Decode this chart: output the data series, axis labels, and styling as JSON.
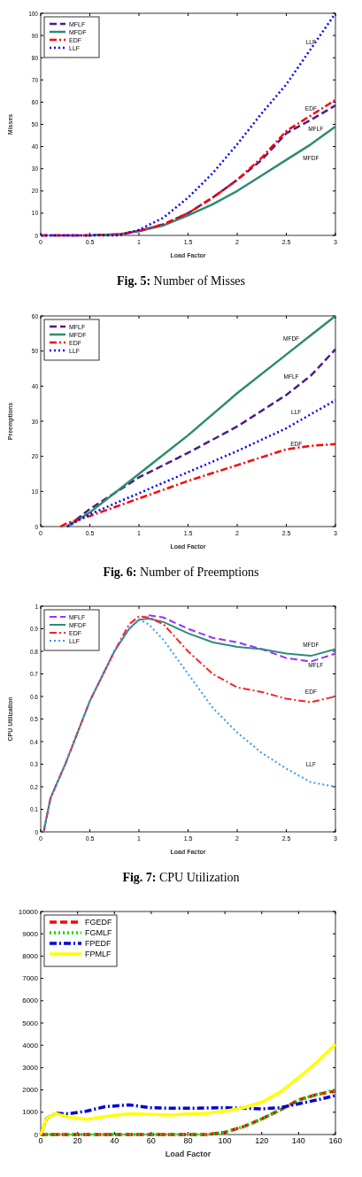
{
  "chart_data": [
    {
      "type": "line",
      "title": "Fig. 5: Number of Misses",
      "xlabel": "Load Factor",
      "ylabel": "Misses",
      "xlim": [
        0,
        3
      ],
      "ylim": [
        0,
        100
      ],
      "xticks": [
        0,
        0.5,
        1,
        1.5,
        2,
        2.5,
        3
      ],
      "yticks": [
        0,
        10,
        20,
        30,
        40,
        50,
        60,
        70,
        80,
        90,
        100
      ],
      "legend": "top left",
      "grid": false,
      "x": [
        0,
        0.5,
        0.8,
        1,
        1.25,
        1.5,
        1.75,
        2,
        2.25,
        2.5,
        2.75,
        3
      ],
      "series": [
        {
          "name": "MFLF",
          "color": "#4b1c8c",
          "line_style": "dashed",
          "values": [
            0,
            0,
            0.5,
            2,
            5,
            10,
            17,
            25,
            34,
            46,
            52,
            58.5
          ]
        },
        {
          "name": "MFDF",
          "color": "#2e8b6e",
          "line_style": "solid",
          "values": [
            null,
            0,
            0.5,
            2,
            4.5,
            9,
            14,
            20,
            27,
            34,
            41,
            49
          ]
        },
        {
          "name": "EDF",
          "color": "#ff0000",
          "line_style": "dashdot",
          "values": [
            0,
            0,
            0.5,
            2,
            5,
            10,
            17,
            25,
            35,
            47,
            54,
            61
          ]
        },
        {
          "name": "LLF",
          "color": "#0000ff",
          "line_style": "dotted",
          "values": [
            0,
            0,
            0,
            2.5,
            8,
            17,
            28,
            41,
            55,
            68,
            84,
            100
          ]
        }
      ],
      "annotations": [
        "LLF",
        "EDF",
        "MFLF",
        "MFDF"
      ]
    },
    {
      "type": "line",
      "title": "Fig. 6: Number of Preemptions",
      "xlabel": "Load Factor",
      "ylabel": "Preemptions",
      "xlim": [
        0,
        3
      ],
      "ylim": [
        0,
        60
      ],
      "xticks": [
        0,
        0.5,
        1,
        1.5,
        2,
        2.5,
        3
      ],
      "yticks": [
        0,
        10,
        20,
        30,
        40,
        50,
        60
      ],
      "legend": "top left",
      "grid": false,
      "x": [
        0.2,
        0.27,
        0.5,
        1,
        1.5,
        2,
        2.5,
        2.75,
        3
      ],
      "series": [
        {
          "name": "MFLF",
          "color": "#4b1c8c",
          "line_style": "dashed",
          "values": [
            null,
            0,
            5,
            14,
            21,
            28.5,
            37.5,
            43,
            50.5
          ]
        },
        {
          "name": "MFDF",
          "color": "#2e8b6e",
          "line_style": "solid",
          "values": [
            null,
            0,
            4,
            15,
            26,
            38,
            49,
            54.5,
            60
          ]
        },
        {
          "name": "EDF",
          "color": "#ff0000",
          "line_style": "dashdot",
          "values": [
            0,
            1,
            3,
            8,
            13,
            17.5,
            22,
            23,
            23.5
          ]
        },
        {
          "name": "LLF",
          "color": "#0000ff",
          "line_style": "dotted",
          "values": [
            null,
            0,
            3.5,
            9.5,
            15.5,
            21.5,
            28,
            32,
            36
          ]
        }
      ],
      "annotations": [
        "MFDF",
        "MFLF",
        "LLF",
        "EDF"
      ]
    },
    {
      "type": "line",
      "title": "Fig. 7: CPU Utilization",
      "xlabel": "Load Factor",
      "ylabel": "CPU Utilization",
      "xlim": [
        0,
        3
      ],
      "ylim": [
        0,
        1
      ],
      "xticks": [
        0,
        0.5,
        1,
        1.5,
        2,
        2.5,
        3
      ],
      "yticks": [
        0,
        0.1,
        0.2,
        0.3,
        0.4,
        0.5,
        0.6,
        0.7,
        0.8,
        0.9,
        1
      ],
      "legend": "top left",
      "grid": false,
      "x": [
        0.03,
        0.1,
        0.25,
        0.5,
        0.75,
        0.9,
        1,
        1.1,
        1.25,
        1.5,
        1.75,
        2,
        2.25,
        2.5,
        2.75,
        3
      ],
      "series": [
        {
          "name": "MFLF",
          "color": "#9b30ff",
          "line_style": "dashed",
          "values": [
            null,
            null,
            null,
            null,
            null,
            null,
            null,
            0.96,
            0.95,
            0.9,
            0.86,
            0.84,
            0.81,
            0.77,
            0.755,
            0.79
          ]
        },
        {
          "name": "MFDF",
          "color": "#2e8b7a",
          "line_style": "solid",
          "values": [
            0,
            0.15,
            0.3,
            0.58,
            0.8,
            0.9,
            0.94,
            0.945,
            0.93,
            0.88,
            0.84,
            0.82,
            0.81,
            0.79,
            0.78,
            0.81
          ]
        },
        {
          "name": "EDF",
          "color": "#ff2020",
          "line_style": "dashdot",
          "values": [
            0,
            0.15,
            0.3,
            0.58,
            0.8,
            0.92,
            0.955,
            0.95,
            0.92,
            0.8,
            0.7,
            0.64,
            0.62,
            0.59,
            0.575,
            0.6
          ]
        },
        {
          "name": "LLF",
          "color": "#3399ff",
          "line_style": "dotted",
          "values": [
            0,
            0.15,
            0.3,
            0.58,
            0.8,
            0.9,
            0.94,
            0.92,
            0.85,
            0.7,
            0.55,
            0.44,
            0.35,
            0.28,
            0.22,
            0.2
          ]
        }
      ],
      "annotations": [
        "MFDF",
        "MFLF",
        "EDF",
        "LLF"
      ]
    },
    {
      "type": "line",
      "xlabel": "Load Factor",
      "xlim": [
        0,
        160
      ],
      "ylim": [
        0,
        10000
      ],
      "xticks": [
        0,
        20,
        40,
        60,
        80,
        100,
        120,
        140,
        160
      ],
      "yticks": [
        0,
        1000,
        2000,
        3000,
        4000,
        5000,
        6000,
        7000,
        8000,
        9000,
        10000
      ],
      "legend": "top left",
      "grid": false,
      "x": [
        0,
        3,
        8,
        15,
        25,
        35,
        48,
        60,
        70,
        80,
        90,
        100,
        110,
        120,
        130,
        140,
        150,
        160
      ],
      "series": [
        {
          "name": "FGEDF",
          "color": "#ff0000",
          "line_style": "dashed",
          "values": [
            0,
            0,
            0,
            0,
            0,
            0,
            0,
            0,
            0,
            0,
            0,
            100,
            350,
            700,
            1100,
            1550,
            1800,
            1950
          ]
        },
        {
          "name": "FGMLF",
          "color": "#00dd00",
          "line_style": "dotted",
          "values": [
            0,
            0,
            0,
            0,
            0,
            0,
            0,
            0,
            0,
            0,
            0,
            100,
            350,
            700,
            1100,
            1550,
            1800,
            2000
          ]
        },
        {
          "name": "FPEDF",
          "color": "#0000dd",
          "line_style": "dashdot",
          "values": [
            0,
            700,
            950,
            930,
            1050,
            1250,
            1330,
            1200,
            1180,
            1180,
            1190,
            1200,
            1180,
            1150,
            1200,
            1380,
            1550,
            1750
          ]
        },
        {
          "name": "FPMLF",
          "color": "#ffff00",
          "line_style": "solid",
          "values": [
            0,
            700,
            950,
            780,
            680,
            800,
            930,
            900,
            870,
            920,
            950,
            1050,
            1200,
            1450,
            1900,
            2550,
            3250,
            4050
          ]
        }
      ]
    }
  ]
}
